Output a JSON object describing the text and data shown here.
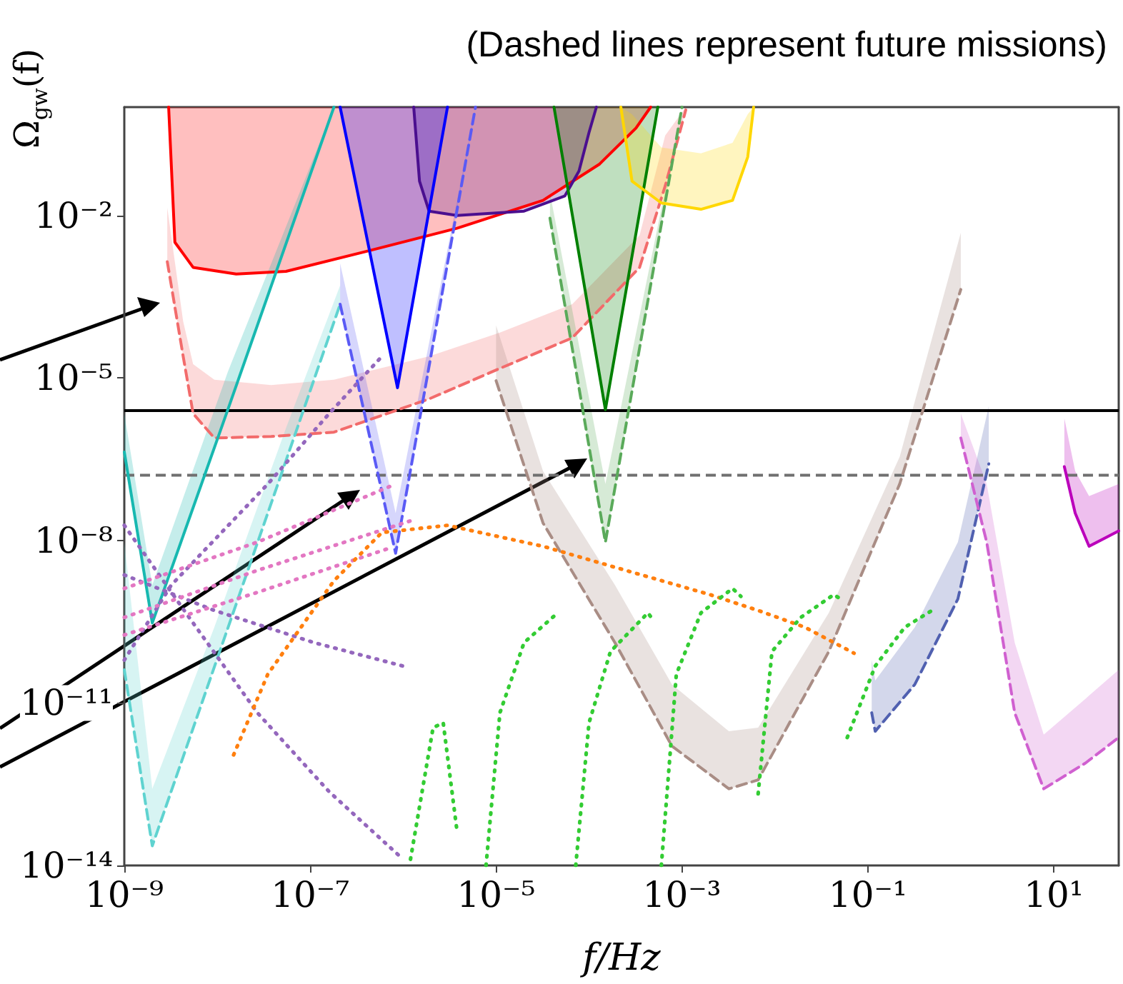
{
  "chart_data": {
    "type": "line",
    "title": "(Dashed lines represent future missions)",
    "xlabel": "f/Hz",
    "ylabel": "Ω$_{gw}$(f)",
    "log": "xy",
    "marker": "none",
    "xlim": [
      1e-09,
      50
    ],
    "ylim": [
      1e-14,
      1
    ],
    "xticks": [
      {
        "value": 1e-09,
        "label": "10⁻⁹"
      },
      {
        "value": 1e-07,
        "label": "10⁻⁷"
      },
      {
        "value": 1e-05,
        "label": "10⁻⁵"
      },
      {
        "value": 0.001,
        "label": "10⁻³"
      },
      {
        "value": 0.1,
        "label": "10⁻¹"
      },
      {
        "value": 10,
        "label": "10¹"
      }
    ],
    "yticks": [
      {
        "value": 1e-14,
        "label": "10⁻¹⁴"
      },
      {
        "value": 1e-11,
        "label": "10⁻¹¹"
      },
      {
        "value": 1e-08,
        "label": "10⁻⁸"
      },
      {
        "value": 1e-05,
        "label": "10⁻⁵"
      },
      {
        "value": 0.01,
        "label": "10⁻²"
      }
    ],
    "ref_lines": [
      {
        "axis": "y",
        "value": 2.5e-06,
        "color": "#000000",
        "line_style": "solid"
      },
      {
        "axis": "y",
        "value": 1.6e-07,
        "color": "#707070",
        "line_style": "dashed"
      }
    ],
    "series": [
      {
        "color": "#ff0000",
        "line_style": "solid",
        "x": [
          3e-09,
          3.5e-09,
          5.5e-09,
          1.6e-08,
          5.5e-08,
          4.6e-07,
          3.8e-06,
          3.2e-05,
          0.00013,
          0.00032,
          0.00046
        ],
        "values": [
          1,
          0.0032,
          0.0011,
          0.00083,
          0.00093,
          0.0023,
          0.0058,
          0.019,
          0.089,
          0.41,
          1
        ],
        "lower": [
          1,
          0.0032,
          0.0011,
          0.00083,
          0.00093,
          0.0023,
          0.0058,
          0.019,
          0.089,
          0.41,
          1
        ],
        "upper": [
          1,
          1,
          1,
          1,
          1,
          1,
          1,
          1,
          1,
          1,
          1
        ]
      },
      {
        "color": "#4b0f8f",
        "line_style": "solid",
        "x": [
          1.3e-06,
          1.5e-06,
          1.9e-06,
          3.8e-06,
          2e-05,
          5.5e-05,
          7.8e-05,
          0.0001,
          0.00012
        ],
        "values": [
          1,
          0.043,
          0.012,
          0.01,
          0.012,
          0.023,
          0.066,
          0.34,
          1
        ],
        "lower": [
          1,
          0.043,
          0.012,
          0.01,
          0.012,
          0.023,
          0.066,
          0.34,
          1
        ],
        "upper": [
          1,
          1,
          1,
          1,
          1,
          1,
          1,
          1,
          1
        ]
      },
      {
        "color": "#f26b6b",
        "line_style": "dashed",
        "x": [
          2.9e-09,
          4.3e-09,
          5.5e-09,
          9.3e-09,
          3.8e-08,
          1.8e-07,
          1.9e-06,
          1.1e-05,
          6.6e-05,
          0.00035,
          0.00066,
          0.0011
        ],
        "values": [
          0.0014,
          2.5e-05,
          2.2e-06,
          7.8e-07,
          8.3e-07,
          1e-06,
          4.1e-06,
          1.5e-05,
          5.5e-05,
          0.0011,
          0.035,
          0.89
        ],
        "lower": [
          0.0014,
          2.5e-05,
          2.2e-06,
          7.8e-07,
          8.3e-07,
          1e-06,
          4.1e-06,
          1.5e-05,
          5.5e-05,
          0.0011,
          0.035,
          0.89
        ],
        "upper": [
          0.014,
          0.00011,
          1.8e-05,
          9.3e-06,
          7.4e-06,
          9.3e-06,
          2.5e-05,
          6.9e-05,
          0.00023,
          0.0043,
          0.3,
          1
        ]
      },
      {
        "color": "#17b8b0",
        "line_style": "solid",
        "x": [
          1e-09,
          2e-09,
          1.3e-08,
          1.8e-07
        ],
        "values": [
          4.3e-07,
          3e-10,
          2.6e-06,
          1
        ],
        "lower": [
          4.3e-07,
          3e-10,
          2.6e-06,
          1
        ],
        "upper": [
          2.2e-06,
          1.5e-09,
          1.3e-05,
          1
        ]
      },
      {
        "color": "#5fd3d0",
        "line_style": "dashed",
        "x": [
          1e-09,
          2e-09,
          9.3e-09,
          5.5e-08,
          2.1e-07
        ],
        "values": [
          4.1e-11,
          2.3e-14,
          4.6e-11,
          3e-07,
          0.00023
        ],
        "lower": [
          4.1e-11,
          2.3e-14,
          4.6e-11,
          3e-07,
          0.00023
        ],
        "upper": [
          9.3e-09,
          2.6e-13,
          2.5e-10,
          1.2e-06,
          0.00051
        ]
      },
      {
        "color": "#0000ff",
        "line_style": "solid",
        "x": [
          2.1e-07,
          8.7e-07,
          3e-06
        ],
        "values": [
          1,
          6.6e-06,
          1
        ],
        "lower": [
          1,
          6.6e-06,
          1
        ],
        "upper": [
          1,
          1,
          1
        ]
      },
      {
        "color": "#5a5af5",
        "line_style": "dashed",
        "x": [
          2.1e-07,
          8.3e-07,
          6e-06
        ],
        "values": [
          0.00023,
          5.8e-09,
          1
        ],
        "lower": [
          0.00023,
          5.8e-09,
          1
        ],
        "upper": [
          0.0013,
          3.2e-08,
          1
        ]
      },
      {
        "color": "#008000",
        "line_style": "solid",
        "x": [
          4.2e-05,
          0.00015,
          0.00055
        ],
        "values": [
          1,
          2.6e-06,
          1
        ],
        "lower": [
          1,
          2.6e-06,
          1
        ],
        "upper": [
          1,
          1,
          1
        ]
      },
      {
        "color": "#5aaa5a",
        "line_style": "dashed",
        "x": [
          3.8e-05,
          0.00015,
          0.001
        ],
        "values": [
          0.0089,
          9.3e-09,
          1
        ],
        "lower": [
          0.0089,
          9.3e-09,
          1
        ],
        "upper": [
          0.026,
          1.1e-07,
          1
        ]
      },
      {
        "color": "#ffd700",
        "line_style": "solid",
        "x": [
          0.00022,
          0.00029,
          0.0006,
          0.0016,
          0.0035,
          0.0051,
          0.0059
        ],
        "values": [
          1,
          0.043,
          0.017,
          0.013,
          0.019,
          0.12,
          1
        ],
        "lower": [
          1,
          0.043,
          0.017,
          0.013,
          0.019,
          0.12,
          1
        ],
        "upper": [
          1,
          0.74,
          0.18,
          0.14,
          0.22,
          0.74,
          1
        ]
      },
      {
        "color": "#a98d85",
        "line_style": "dashed",
        "x": [
          1e-05,
          3.2e-05,
          0.00019,
          0.00078,
          0.0032,
          0.0066,
          0.038,
          0.22,
          1.0
        ],
        "values": [
          8.9e-06,
          2.1e-08,
          1.3e-10,
          1.6e-12,
          2.6e-13,
          3.8e-13,
          8.9e-11,
          1.1e-07,
          0.00043
        ],
        "lower": [
          8.9e-06,
          2.1e-08,
          1.3e-10,
          1.6e-12,
          2.6e-13,
          3.8e-13,
          8.9e-11,
          1.1e-07,
          0.00043
        ],
        "upper": [
          9.3e-05,
          1.9e-07,
          1.5e-09,
          2.2e-11,
          3e-12,
          3.5e-12,
          4.6e-10,
          3.5e-07,
          0.0048
        ]
      },
      {
        "color": "#5060b0",
        "line_style": "dashed",
        "x": [
          0.11,
          0.12,
          0.32,
          0.93,
          2.0
        ],
        "values": [
          6.6e-12,
          3e-12,
          2.2e-11,
          8.3e-10,
          2.6e-07
        ],
        "lower": [
          6.6e-12,
          3e-12,
          2.2e-11,
          8.3e-10,
          2.6e-07
        ],
        "upper": [
          6.2e-11,
          2.6e-11,
          2.5e-10,
          9.3e-09,
          3e-06
        ]
      },
      {
        "color": "#d060d0",
        "line_style": "dashed",
        "x": [
          1.0,
          1.9,
          3.8,
          7.8,
          22,
          50
        ],
        "values": [
          7.8e-07,
          9.3e-09,
          6.6e-12,
          2.6e-13,
          7.8e-13,
          2.3e-12
        ],
        "lower": [
          7.8e-07,
          9.3e-09,
          6.6e-12,
          2.6e-13,
          7.8e-13,
          2.3e-12
        ],
        "upper": [
          2.2e-06,
          1.1e-07,
          1.3e-10,
          2.6e-12,
          1.2e-11,
          4.1e-11
        ]
      },
      {
        "color": "#bb00bb",
        "line_style": "solid",
        "x": [
          13,
          17,
          24,
          50
        ],
        "values": [
          2.3e-07,
          3.2e-08,
          7.8e-09,
          1.5e-08
        ],
        "lower": [
          2.3e-07,
          3.2e-08,
          7.8e-09,
          1.5e-08
        ],
        "upper": [
          1.8e-06,
          1.9e-07,
          6.6e-08,
          1.1e-07
        ]
      },
      {
        "color": "#9467bd",
        "line_style": "dotted",
        "x": [
          1e-09,
          4.6e-09,
          2.7e-08,
          1.6e-07,
          1e-06
        ],
        "values": [
          1.9e-08,
          4.6e-10,
          6.6e-12,
          2.3e-13,
          1.3e-14
        ]
      },
      {
        "color": "#9467bd",
        "line_style": "dotted",
        "x": [
          1e-09,
          9.3e-09,
          1.1e-07,
          1e-06
        ],
        "values": [
          2.3e-09,
          5.1e-10,
          1.3e-10,
          4.8e-11
        ]
      },
      {
        "color": "#9467bd",
        "line_style": "dotted",
        "x": [
          1e-09,
          3.2e-09,
          3.5e-08,
          1.6e-07,
          5.9e-07
        ],
        "values": [
          6.2e-11,
          1.5e-09,
          1.1e-07,
          2.2e-06,
          2.5e-05
        ]
      },
      {
        "color": "#e377c2",
        "line_style": "dotted",
        "x": [
          1e-09,
          2.7e-08,
          8.3e-07
        ],
        "values": [
          1.3e-09,
          9.3e-09,
          1.1e-07
        ]
      },
      {
        "color": "#e377c2",
        "line_style": "dotted",
        "x": [
          1e-09,
          2.7e-08,
          1.2e-06
        ],
        "values": [
          3.8e-10,
          2.8e-09,
          2.3e-08
        ]
      },
      {
        "color": "#e377c2",
        "line_style": "dotted",
        "x": [
          1e-09,
          2.7e-08,
          6.6e-07
        ],
        "values": [
          1.8e-10,
          1.1e-09,
          6.9e-09
        ]
      },
      {
        "color": "#ff7f0e",
        "line_style": "dotted",
        "x": [
          1.5e-08,
          3.5e-08,
          1.8e-07,
          5.9e-07,
          3e-06,
          2e-05,
          3.2e-05,
          0.00019,
          0.002,
          0.0066,
          0.021,
          0.071
        ],
        "values": [
          1.1e-12,
          3.4e-11,
          1.8e-09,
          1.4e-08,
          1.9e-08,
          9.3e-09,
          7.8e-09,
          3.2e-09,
          1e-09,
          5.1e-10,
          2.5e-10,
          8.3e-11
        ]
      },
      {
        "color": "#33cc33",
        "line_style": "dotted",
        "x": [
          1.2e-06,
          2.1e-06,
          2.7e-06,
          3.8e-06
        ],
        "values": [
          1.3e-14,
          3.5e-12,
          4.3e-12,
          4.3e-14
        ]
      },
      {
        "color": "#33cc33",
        "line_style": "dotted",
        "x": [
          7.8e-06,
          1.1e-05,
          2e-05,
          4.6e-05
        ],
        "values": [
          1e-14,
          6.6e-12,
          1.3e-10,
          4.6e-10
        ]
      },
      {
        "color": "#33cc33",
        "line_style": "dotted",
        "x": [
          7.2e-05,
          0.0001,
          0.00017,
          0.00043,
          0.00049
        ],
        "values": [
          1e-14,
          4.3e-12,
          8.9e-11,
          4.6e-10,
          3.4e-10
        ]
      },
      {
        "color": "#33cc33",
        "line_style": "dotted",
        "x": [
          0.0006,
          0.00087,
          0.0016,
          0.0035,
          0.0043
        ],
        "values": [
          1e-14,
          3.4e-11,
          4.6e-10,
          1.3e-09,
          9.3e-10
        ]
      },
      {
        "color": "#33cc33",
        "line_style": "dotted",
        "x": [
          0.0066,
          0.0093,
          0.019,
          0.043,
          0.051
        ],
        "values": [
          2.1e-13,
          8.9e-11,
          3.8e-10,
          1e-09,
          8.3e-10
        ]
      },
      {
        "color": "#33cc33",
        "line_style": "dotted",
        "x": [
          0.06,
          0.12,
          0.25,
          0.49
        ],
        "values": [
          2.3e-12,
          4.8e-11,
          2.5e-10,
          5.1e-10
        ]
      }
    ]
  }
}
